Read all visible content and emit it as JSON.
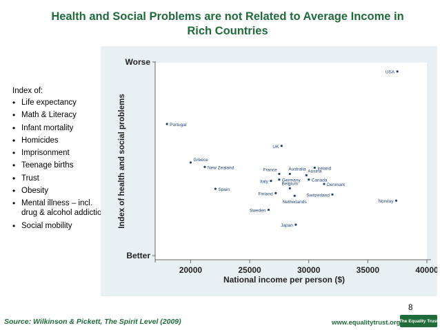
{
  "title": "Health and Social Problems are not Related to Average Income in Rich Countries",
  "legend": {
    "heading": "Index of:",
    "items": [
      "Life expectancy",
      "Math & Literacy",
      "Infant mortality",
      "Homicides",
      "Imprisonment",
      "Teenage births",
      "Trust",
      "Obesity",
      "Mental illness – incl. drug & alcohol addiction",
      "Social mobility"
    ]
  },
  "chart_data": {
    "type": "scatter",
    "title": "",
    "xlabel": "National income per person ($)",
    "ylabel": "Index of health and social problems",
    "xlim": [
      17000,
      40000
    ],
    "ylim": [
      -1.9,
      2.6
    ],
    "xticks": [
      20000,
      25000,
      30000,
      35000,
      40000
    ],
    "xtick_labels": [
      "20000",
      "25000",
      "30000",
      "35000",
      "40000"
    ],
    "y_endpoint_labels": {
      "top": "Worse",
      "bottom": "Better"
    },
    "points": [
      {
        "label": "USA",
        "x": 37500,
        "y": 2.4
      },
      {
        "label": "Portugal",
        "x": 18000,
        "y": 1.2
      },
      {
        "label": "UK",
        "x": 27700,
        "y": 0.7
      },
      {
        "label": "Greece",
        "x": 20000,
        "y": 0.32
      },
      {
        "label": "New Zealand",
        "x": 21200,
        "y": 0.22
      },
      {
        "label": "Ireland",
        "x": 30500,
        "y": 0.2
      },
      {
        "label": "France",
        "x": 27500,
        "y": 0.06
      },
      {
        "label": "Australia",
        "x": 28400,
        "y": 0.06
      },
      {
        "label": "Austria",
        "x": 29800,
        "y": 0.03
      },
      {
        "label": "Germany",
        "x": 27500,
        "y": -0.07
      },
      {
        "label": "Italy",
        "x": 26800,
        "y": -0.1
      },
      {
        "label": "Canada",
        "x": 30000,
        "y": -0.07
      },
      {
        "label": "Denmark",
        "x": 31300,
        "y": -0.17
      },
      {
        "label": "Spain",
        "x": 22100,
        "y": -0.28
      },
      {
        "label": "Belgium",
        "x": 28400,
        "y": -0.27
      },
      {
        "label": "Finland",
        "x": 27200,
        "y": -0.38
      },
      {
        "label": "Switzerland",
        "x": 32000,
        "y": -0.41
      },
      {
        "label": "Netherlands",
        "x": 28800,
        "y": -0.44
      },
      {
        "label": "Norway",
        "x": 37400,
        "y": -0.55
      },
      {
        "label": "Sweden",
        "x": 26600,
        "y": -0.76
      },
      {
        "label": "Japan",
        "x": 28900,
        "y": -1.1
      }
    ]
  },
  "footer": {
    "slide_number": "8",
    "source": "Source: Wilkinson & Pickett, The Spirit Level (2009)",
    "website": "www.equalitytrust.org.uk",
    "logo_text": "The Equality Trust"
  }
}
